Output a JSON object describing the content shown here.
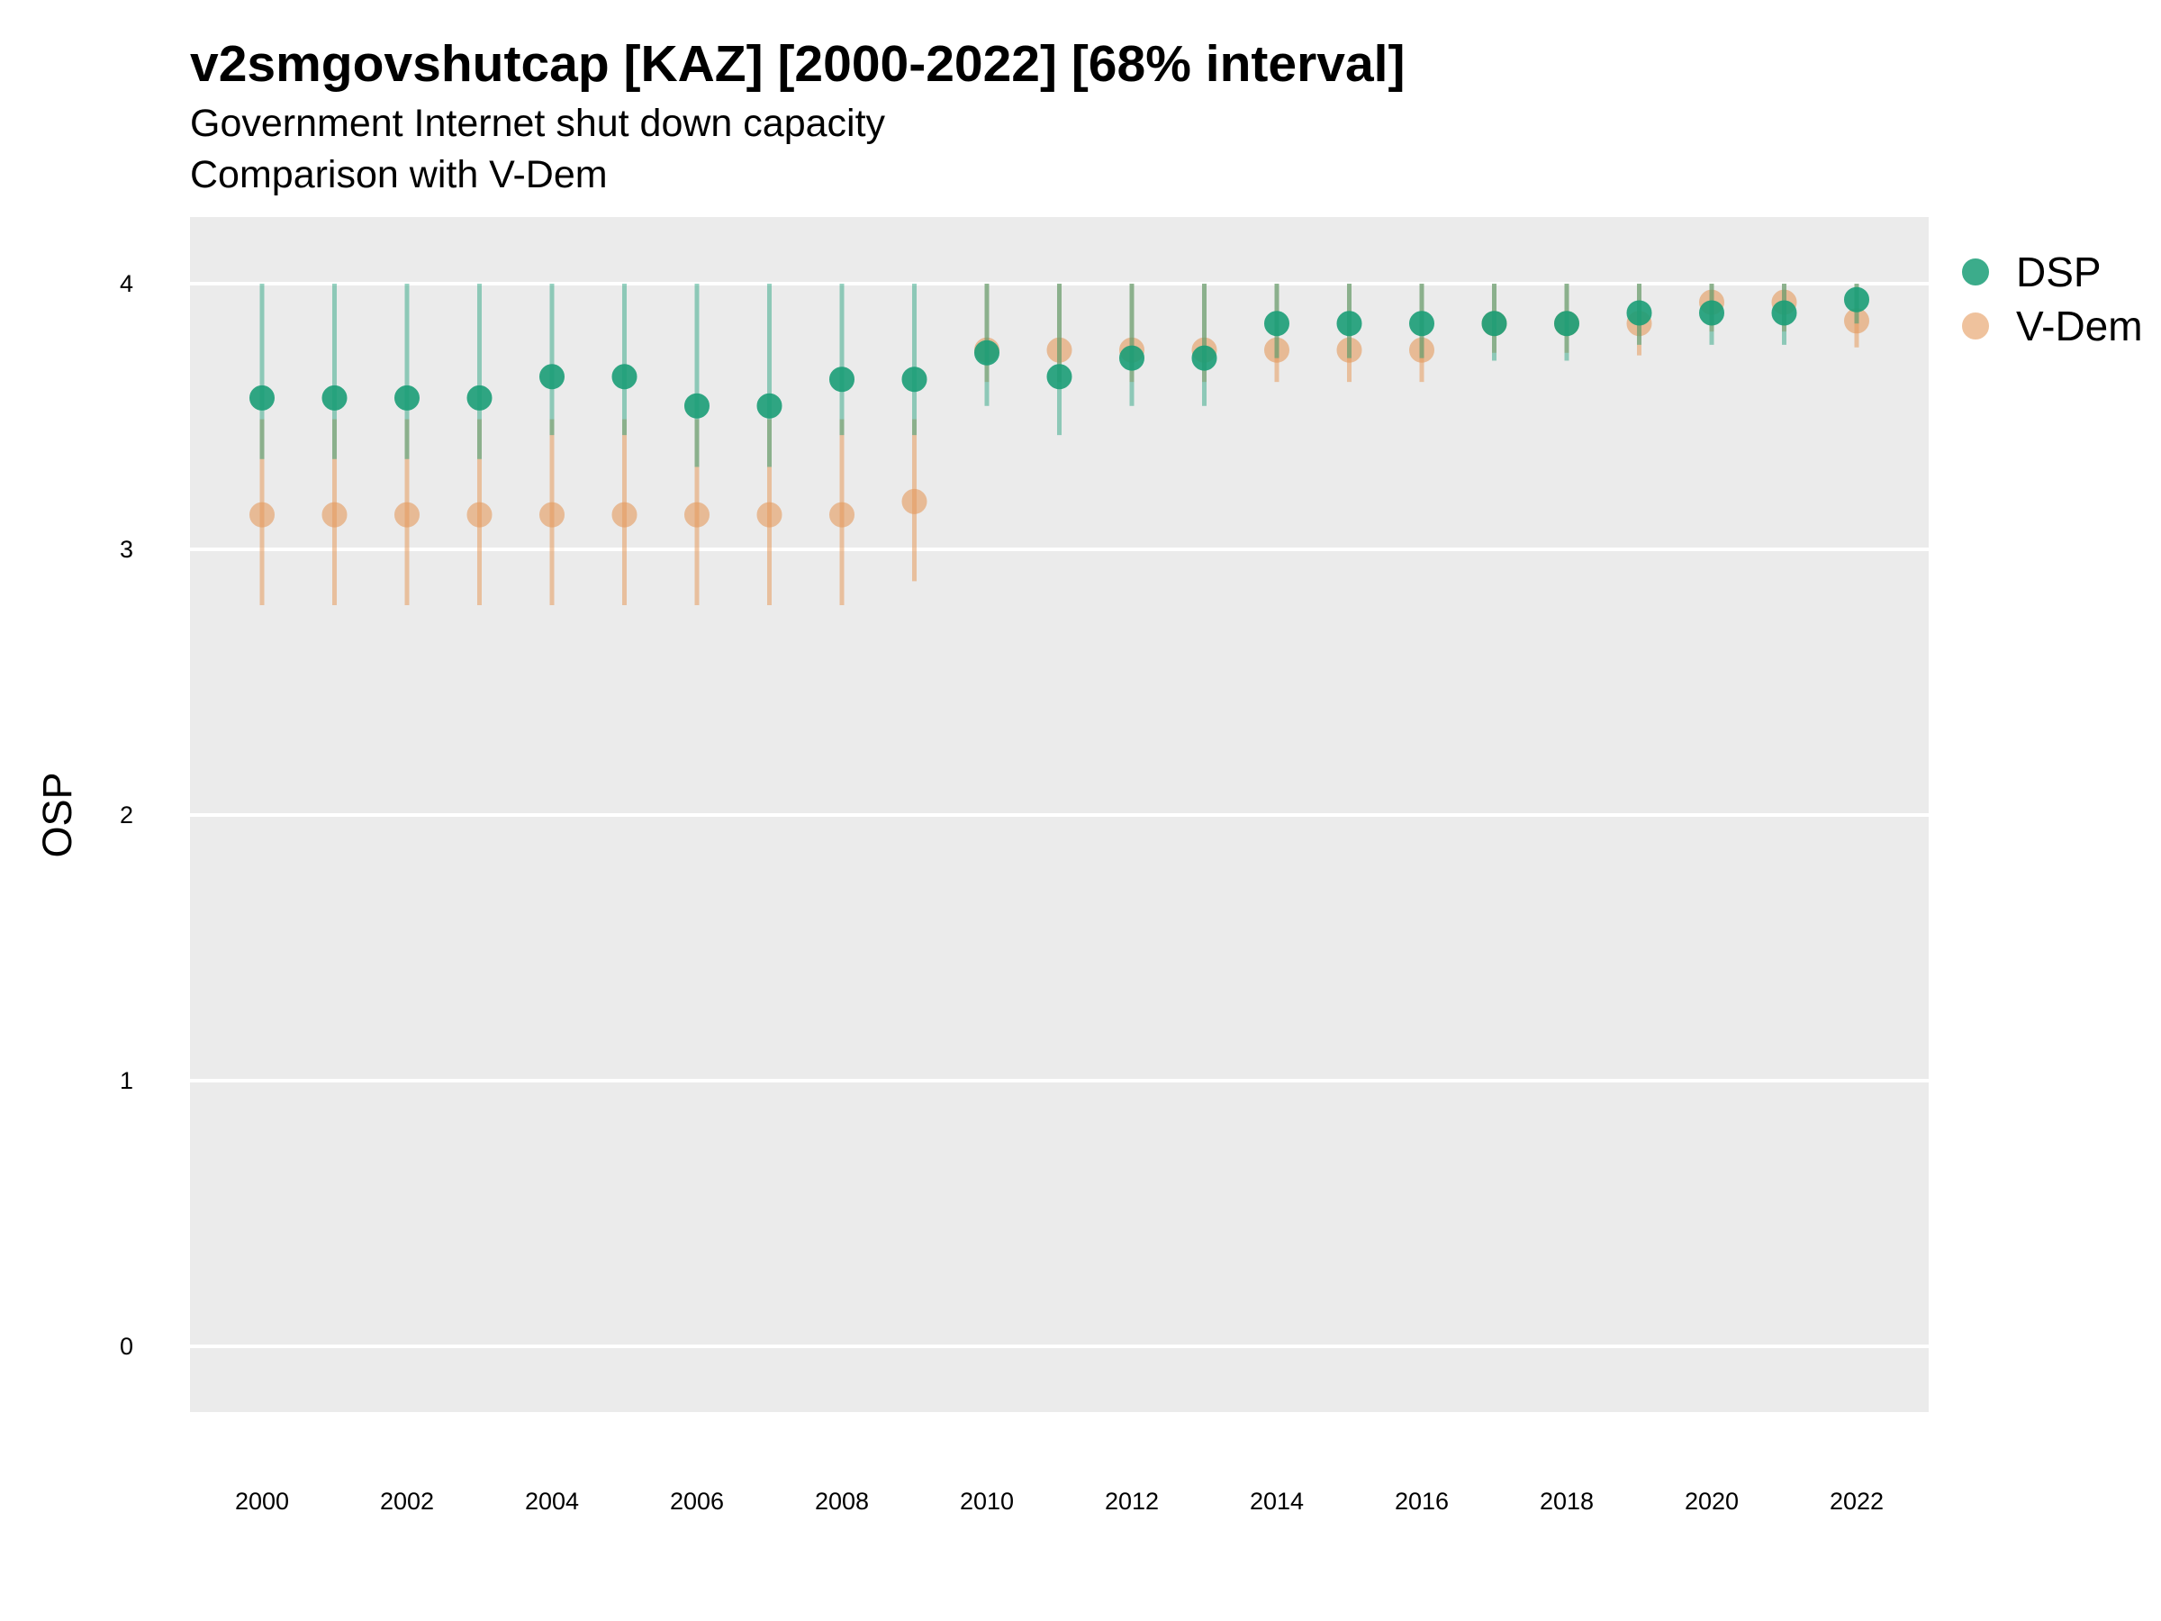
{
  "chart_data": {
    "type": "scatter",
    "title": "v2smgovshutcap [KAZ] [2000-2022] [68% interval]",
    "subtitle": [
      "Government Internet shut down capacity",
      "Comparison with V-Dem"
    ],
    "xlabel": "",
    "ylabel": "OSP",
    "ylim": [
      -0.25,
      4.25
    ],
    "xlim": [
      1999,
      2023
    ],
    "yticks": [
      0,
      1,
      2,
      3,
      4
    ],
    "xticks": [
      2000,
      2002,
      2004,
      2006,
      2008,
      2010,
      2012,
      2014,
      2016,
      2018,
      2020,
      2022
    ],
    "grid": true,
    "legend_position": "right",
    "x": [
      2000,
      2001,
      2002,
      2003,
      2004,
      2005,
      2006,
      2007,
      2008,
      2009,
      2010,
      2011,
      2012,
      2013,
      2014,
      2015,
      2016,
      2017,
      2018,
      2019,
      2020,
      2021,
      2022
    ],
    "series": [
      {
        "name": "V-Dem",
        "color": "#E59A5D",
        "values": [
          3.13,
          3.13,
          3.13,
          3.13,
          3.13,
          3.13,
          3.13,
          3.13,
          3.13,
          3.18,
          3.75,
          3.75,
          3.75,
          3.75,
          3.75,
          3.75,
          3.75,
          3.85,
          3.85,
          3.85,
          3.93,
          3.93,
          3.86
        ],
        "lower": [
          2.79,
          2.79,
          2.79,
          2.79,
          2.79,
          2.79,
          2.79,
          2.79,
          2.79,
          2.88,
          3.63,
          3.63,
          3.63,
          3.63,
          3.63,
          3.63,
          3.63,
          3.74,
          3.74,
          3.73,
          3.82,
          3.82,
          3.76
        ],
        "upper": [
          3.49,
          3.49,
          3.49,
          3.49,
          3.49,
          3.49,
          3.49,
          3.49,
          3.49,
          3.49,
          4.0,
          4.0,
          4.0,
          4.0,
          4.0,
          4.0,
          4.0,
          4.0,
          4.0,
          4.0,
          4.0,
          4.0,
          4.0
        ]
      },
      {
        "name": "DSP",
        "color": "#1B9E77",
        "values": [
          3.57,
          3.57,
          3.57,
          3.57,
          3.65,
          3.65,
          3.54,
          3.54,
          3.64,
          3.64,
          3.74,
          3.65,
          3.72,
          3.72,
          3.85,
          3.85,
          3.85,
          3.85,
          3.85,
          3.89,
          3.89,
          3.89,
          3.94
        ],
        "lower": [
          3.34,
          3.34,
          3.34,
          3.34,
          3.43,
          3.43,
          3.31,
          3.31,
          3.43,
          3.43,
          3.54,
          3.43,
          3.54,
          3.54,
          3.72,
          3.72,
          3.72,
          3.71,
          3.71,
          3.77,
          3.77,
          3.77,
          3.85
        ],
        "upper": [
          4.0,
          4.0,
          4.0,
          4.0,
          4.0,
          4.0,
          4.0,
          4.0,
          4.0,
          4.0,
          4.0,
          4.0,
          4.0,
          4.0,
          4.0,
          4.0,
          4.0,
          4.0,
          4.0,
          4.0,
          4.0,
          4.0,
          4.0
        ]
      }
    ]
  }
}
